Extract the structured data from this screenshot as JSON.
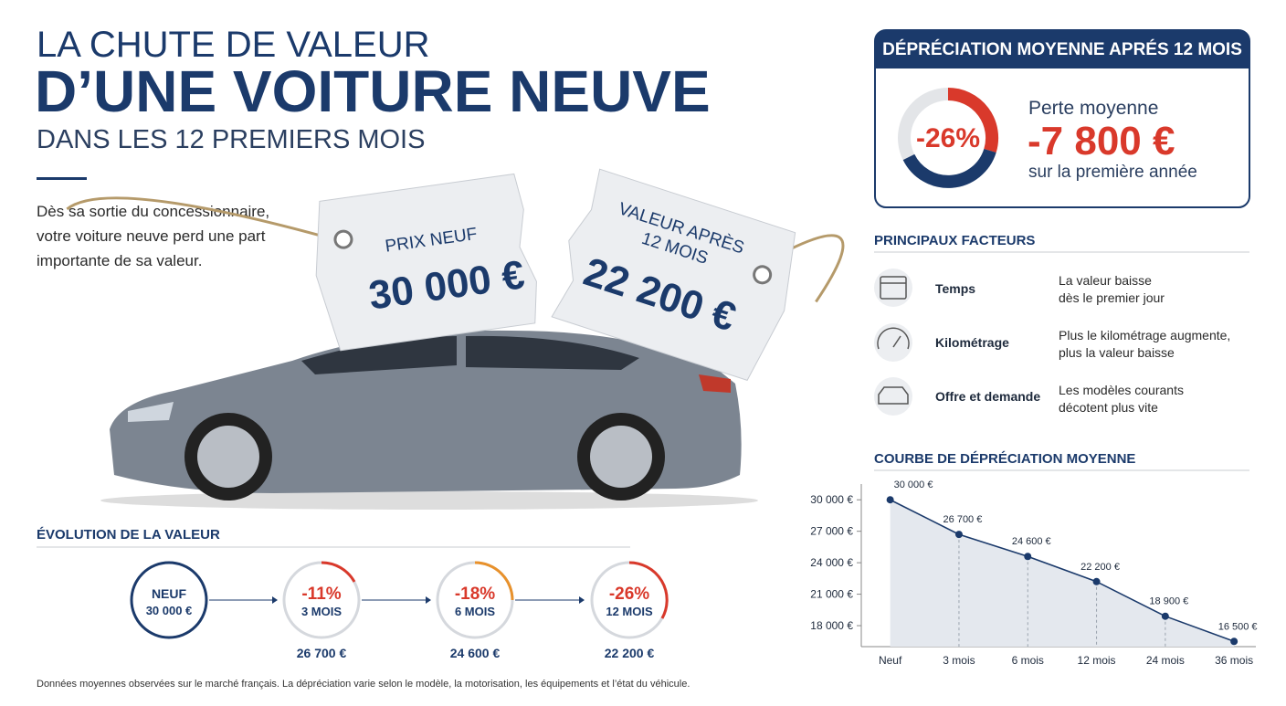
{
  "header": {
    "title_line1": "LA CHUTE DE VALEUR",
    "title_line2": "D’UNE VOITURE NEUVE",
    "subtitle": "DANS LES 12 PREMIERS MOIS",
    "intro": [
      "Dès sa sortie du concessionnaire,",
      "votre voiture neuve perd une part",
      "importante de sa valeur."
    ]
  },
  "tags": [
    {
      "label": [
        "PRIX NEUF"
      ],
      "price": "30 000 €"
    },
    {
      "label": [
        "VALEUR APRÈS",
        "12 MOIS"
      ],
      "price": "22 200 €"
    }
  ],
  "summary": {
    "title": "DÉPRÉCIATION MOYENNE APRÉS 12 MOIS",
    "percent": "-26%",
    "caption": "Perte moyenne",
    "amount": "-7 800 €",
    "note": "sur la première année"
  },
  "factors": {
    "title": "PRINCIPAUX FACTEURS",
    "items": [
      {
        "name": "Temps",
        "text": [
          "La valeur baisse",
          "dès le premier jour"
        ]
      },
      {
        "name": "Kilométrage",
        "text": [
          "Plus le kilométrage augmente,",
          "plus la valeur baisse"
        ]
      },
      {
        "name": "Offre et demande",
        "text": [
          "Les modèles courants",
          "décotent plus vite"
        ]
      }
    ]
  },
  "evolution": {
    "title": "ÉVOLUTION DE LA VALEUR",
    "steps": [
      {
        "top": "NEUF",
        "bottom": "30 000 €"
      },
      {
        "top": "-11%",
        "bottom": "3 MOIS",
        "value": "26 700 €"
      },
      {
        "top": "-18%",
        "bottom": "6 MOIS",
        "value": "24 600 €"
      },
      {
        "top": "-26%",
        "bottom": "12 MOIS",
        "value": "22 200 €"
      }
    ]
  },
  "chart_data": {
    "type": "line",
    "title": "COURBE DE DÉPRÉCIATION MOYENNE",
    "categories": [
      "Neuf",
      "3 mois",
      "6 mois",
      "12 mois",
      "24 mois",
      "36 mois"
    ],
    "series": [
      {
        "name": "Valeur",
        "color": "#1b3a6b",
        "area_color": "#e4e8ee",
        "values": [
          30000,
          26700,
          24600,
          22200,
          18900,
          16500
        ],
        "value_labels": [
          "30 000 €",
          "26 700 €",
          "24 600 €",
          "22 200 €",
          "18 900 €",
          "16 500 €"
        ]
      }
    ],
    "ylim": [
      16000,
      31500
    ],
    "yticks": [
      {
        "value": 18000,
        "label": "18 000 €"
      },
      {
        "value": 21000,
        "label": "21 000 €"
      },
      {
        "value": 24000,
        "label": "24 000 €"
      },
      {
        "value": 27000,
        "label": "27 000 €"
      },
      {
        "value": 30000,
        "label": "30 000 €"
      }
    ]
  },
  "footnote": "Données moyennes observées sur le marché français. La dépréciation varie selon le modèle, la motorisation, les équipements et l’état du véhicule."
}
